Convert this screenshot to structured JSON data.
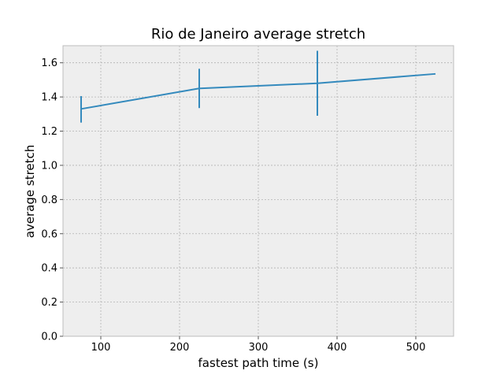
{
  "chart_data": {
    "type": "line",
    "title": "Rio de Janeiro average stretch",
    "xlabel": "fastest path time (s)",
    "ylabel": "average stretch",
    "xlim": [
      52,
      548
    ],
    "ylim": [
      0,
      1.7
    ],
    "xticks": [
      100,
      200,
      300,
      400,
      500
    ],
    "yticks": [
      0.0,
      0.2,
      0.4,
      0.6,
      0.8,
      1.0,
      1.2,
      1.4,
      1.6
    ],
    "xtick_labels": [
      "100",
      "200",
      "300",
      "400",
      "500"
    ],
    "ytick_labels": [
      "0.0",
      "0.2",
      "0.4",
      "0.6",
      "0.8",
      "1.0",
      "1.2",
      "1.4",
      "1.6"
    ],
    "grid": true,
    "series": [
      {
        "x": [
          75,
          225,
          375,
          525
        ],
        "y": [
          1.33,
          1.45,
          1.48,
          1.535
        ],
        "yerr_low": [
          1.25,
          1.335,
          1.29,
          null
        ],
        "yerr_high": [
          1.405,
          1.565,
          1.67,
          null
        ]
      }
    ],
    "colors": {
      "line": "#348ABD",
      "background": "#EEEEEE",
      "grid": "#B2B2B2",
      "spine": "#BCBCBC"
    }
  }
}
